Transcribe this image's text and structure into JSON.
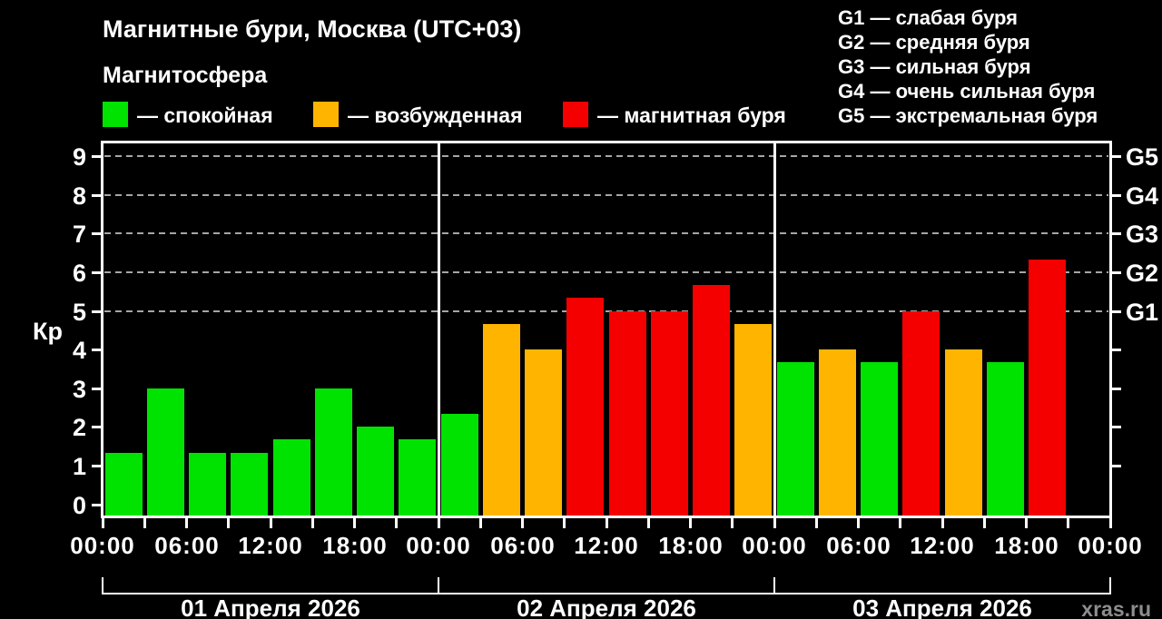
{
  "title": "Магнитные бури, Москва (UTC+03)",
  "subtitle": "Магнитосфера",
  "status_legend": {
    "items": [
      {
        "key": "quiet",
        "label": "— спокойная",
        "color": "#00e300"
      },
      {
        "key": "excited",
        "label": "— возбужденная",
        "color": "#ffb400"
      },
      {
        "key": "storm",
        "label": "— магнитная буря",
        "color": "#f50000"
      }
    ]
  },
  "g_scale_legend": {
    "lines": [
      "G1 — слабая буря",
      "G2 — средняя буря",
      "G3 — сильная буря",
      "G4 — очень сильная буря",
      "G5 — экстремальная буря"
    ]
  },
  "watermark": "xras.ru",
  "chart_data": {
    "type": "bar",
    "title": "Магнитные бури, Москва (UTC+03)",
    "ylabel": "Кр",
    "ylim": [
      0,
      9
    ],
    "yticks": [
      0,
      1,
      2,
      3,
      4,
      5,
      6,
      7,
      8,
      9
    ],
    "gridlines_at": [
      5,
      6,
      7,
      8,
      9
    ],
    "right_axis_labels": [
      {
        "value": 5,
        "label": "G1"
      },
      {
        "value": 6,
        "label": "G2"
      },
      {
        "value": 7,
        "label": "G3"
      },
      {
        "value": 8,
        "label": "G4"
      },
      {
        "value": 9,
        "label": "G5"
      }
    ],
    "x_hour_labels": [
      "00:00",
      "06:00",
      "12:00",
      "18:00",
      "00:00",
      "06:00",
      "12:00",
      "18:00",
      "00:00",
      "06:00",
      "12:00",
      "18:00",
      "00:00"
    ],
    "interval_hours": 3,
    "colors": {
      "quiet": "#00e300",
      "excited": "#ffb400",
      "storm": "#f50000"
    },
    "days": [
      {
        "date": "01 Апреля 2026",
        "values": [
          1.33,
          3,
          1.33,
          1.33,
          1.67,
          3,
          2,
          1.67
        ],
        "levels": [
          "quiet",
          "quiet",
          "quiet",
          "quiet",
          "quiet",
          "quiet",
          "quiet",
          "quiet"
        ]
      },
      {
        "date": "02 Апреля 2026",
        "values": [
          2.33,
          4.67,
          4,
          5.33,
          5,
          5,
          5.67,
          4.67
        ],
        "levels": [
          "quiet",
          "excited",
          "excited",
          "storm",
          "storm",
          "storm",
          "storm",
          "excited"
        ]
      },
      {
        "date": "03 Апреля 2026",
        "values": [
          3.67,
          4,
          3.67,
          5,
          4,
          3.67,
          6.33,
          null
        ],
        "levels": [
          "quiet",
          "excited",
          "quiet",
          "storm",
          "excited",
          "quiet",
          "storm",
          null
        ]
      }
    ]
  }
}
